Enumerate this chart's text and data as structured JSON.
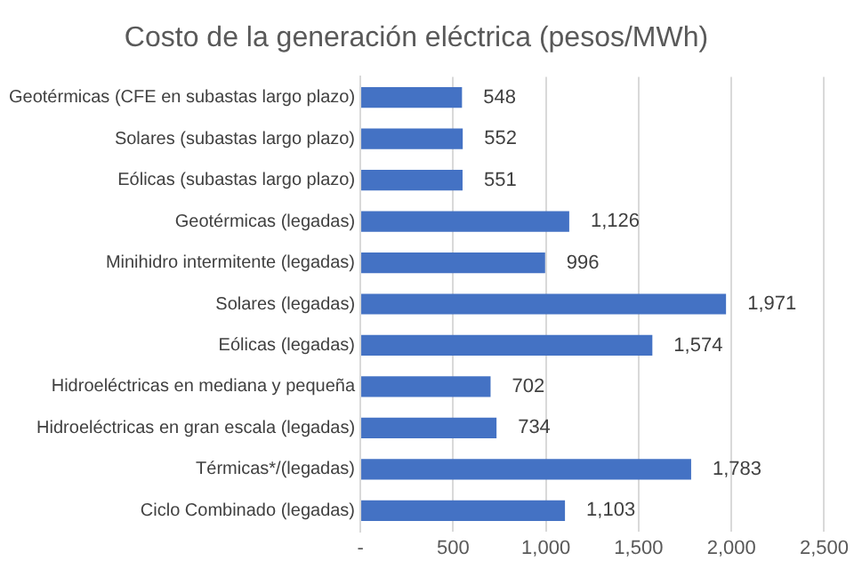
{
  "chart_data": {
    "type": "bar",
    "orientation": "horizontal",
    "title": "Costo de la generación eléctrica (pesos/MWh)",
    "categories": [
      "Geotérmicas (CFE en subastas largo plazo)",
      "Solares (subastas largo plazo)",
      "Eólicas (subastas largo plazo)",
      "Geotérmicas (legadas)",
      "Minihidro intermitente (legadas)",
      "Solares (legadas)",
      "Eólicas (legadas)",
      "Hidroeléctricas en mediana y pequeña",
      "Hidroeléctricas en gran escala (legadas)",
      "Térmicas*/(legadas)",
      "Ciclo Combinado (legadas)"
    ],
    "values": [
      548,
      552,
      551,
      1126,
      996,
      1971,
      1574,
      702,
      734,
      1783,
      1103
    ],
    "value_labels": [
      "548",
      "552",
      "551",
      "1,126",
      "996",
      "1,971",
      "1,574",
      "702",
      "734",
      "1,783",
      "1,103"
    ],
    "color": "#4472c4",
    "xlim": [
      0,
      2500
    ],
    "xticks": [
      {
        "value": 0,
        "label": "-"
      },
      {
        "value": 500,
        "label": "500"
      },
      {
        "value": 1000,
        "label": "1,000"
      },
      {
        "value": 1500,
        "label": "1,500"
      },
      {
        "value": 2000,
        "label": "2,000"
      },
      {
        "value": 2500,
        "label": "2,500"
      }
    ],
    "grid": "x"
  }
}
